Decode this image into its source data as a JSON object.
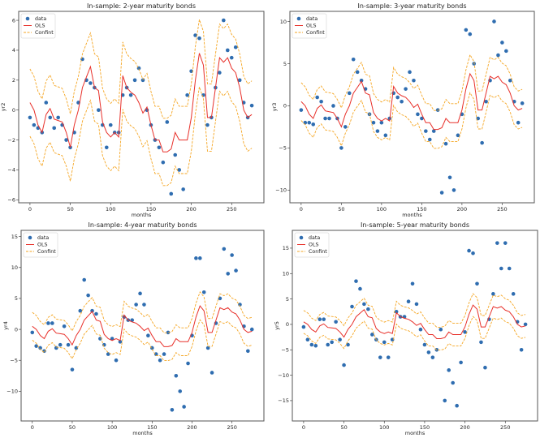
{
  "colors": {
    "data": "#2f6db0",
    "ols": "#e8302a",
    "confint": "#f5a623",
    "frame": "#555555"
  },
  "chart_data": [
    {
      "type": "scatter+line",
      "title": "In-sample: 2-year maturity bonds",
      "xlabel": "months",
      "ylabel": "yr2",
      "xlim": [
        -14,
        290
      ],
      "ylim": [
        -6.2,
        6.6
      ],
      "xticks": [
        0,
        50,
        100,
        150,
        200,
        250
      ],
      "yticks": [
        -6,
        -4,
        -2,
        0,
        2,
        4,
        6
      ],
      "legend": {
        "position": "top-left",
        "entries": [
          "data",
          "OLS",
          "Confint"
        ]
      },
      "data": [
        -0.5,
        -1.0,
        -1.2,
        -1.5,
        0.5,
        -0.5,
        -1.2,
        -0.5,
        -1.0,
        -2.0,
        -2.5,
        -1.5,
        0.5,
        3.4,
        2.0,
        1.8,
        1.5,
        0.0,
        -1.0,
        -2.5,
        -1.0,
        -1.5,
        -1.5,
        1.0,
        1.5,
        1.0,
        2.0,
        2.8,
        2.0,
        0.0,
        -1.0,
        -2.0,
        -2.5,
        -3.5,
        -0.8,
        -5.6,
        -3.0,
        -4.0,
        -5.3,
        1.0,
        2.6,
        5.0,
        4.8,
        1.0,
        -1.0,
        -0.5,
        1.5,
        2.5,
        6.0,
        4.0,
        3.5,
        4.2,
        2.0,
        0.5,
        -0.5,
        0.3
      ]
    },
    {
      "type": "scatter+line",
      "title": "In-sample: 3-year maturity bonds",
      "xlabel": "months",
      "ylabel": "yr3",
      "xlim": [
        -14,
        290
      ],
      "ylim": [
        -11.5,
        11.2
      ],
      "xticks": [
        0,
        50,
        100,
        150,
        200,
        250
      ],
      "yticks": [
        -10,
        -5,
        0,
        5,
        10
      ],
      "legend": {
        "position": "top-left",
        "entries": [
          "data",
          "OLS",
          "Confint"
        ]
      },
      "data": [
        -0.5,
        -2.0,
        -2.0,
        -2.2,
        1.0,
        0.5,
        -1.5,
        -1.5,
        0.0,
        -1.5,
        -5.0,
        -2.5,
        1.5,
        5.5,
        4.0,
        3.0,
        2.0,
        -1.0,
        -2.0,
        -3.0,
        -2.0,
        -3.5,
        -1.5,
        1.5,
        1.0,
        0.5,
        2.0,
        4.0,
        3.0,
        -1.0,
        -1.5,
        -3.0,
        -4.0,
        -3.0,
        -0.5,
        -10.3,
        -4.5,
        -8.5,
        -10.0,
        -3.5,
        -1.0,
        9.0,
        8.5,
        5.0,
        -1.5,
        -4.4,
        0.5,
        3.0,
        10.0,
        6.0,
        7.5,
        6.5,
        3.0,
        0.5,
        -2.0,
        0.3
      ]
    },
    {
      "type": "scatter+line",
      "title": "In-sample: 4-year maturity bonds",
      "xlabel": "months",
      "ylabel": "yr4",
      "xlim": [
        -14,
        290
      ],
      "ylim": [
        -14.8,
        16.0
      ],
      "xticks": [
        0,
        50,
        100,
        150,
        200,
        250
      ],
      "yticks": [
        -10,
        -5,
        0,
        5,
        10,
        15
      ],
      "legend": {
        "position": "top-left",
        "entries": [
          "data",
          "OLS",
          "Confint"
        ]
      },
      "data": [
        -0.5,
        -2.7,
        -3.0,
        -3.5,
        1.0,
        1.0,
        -3.0,
        -2.5,
        0.5,
        -2.5,
        -6.5,
        -3.0,
        3.0,
        8.0,
        5.5,
        3.0,
        2.5,
        -1.5,
        -2.5,
        -4.0,
        -1.5,
        -5.0,
        -2.0,
        2.0,
        1.5,
        1.5,
        4.0,
        5.8,
        4.0,
        -1.0,
        -3.0,
        -4.0,
        -5.0,
        -4.0,
        -0.5,
        -13.0,
        -7.5,
        -10.0,
        -12.5,
        -5.5,
        -1.0,
        11.5,
        11.5,
        6.0,
        -3.0,
        -7.0,
        1.0,
        5.0,
        13.0,
        9.0,
        12.0,
        9.5,
        4.0,
        0.5,
        -3.5,
        0.0
      ]
    },
    {
      "type": "scatter+line",
      "title": "In-sample: 5-year maturity bonds",
      "xlabel": "months",
      "ylabel": "yr5",
      "xlim": [
        -14,
        290
      ],
      "ylim": [
        -19.0,
        18.5
      ],
      "xticks": [
        0,
        50,
        100,
        150,
        200,
        250
      ],
      "yticks": [
        -15,
        -10,
        -5,
        0,
        5,
        10,
        15
      ],
      "legend": {
        "position": "top-left",
        "entries": [
          "data",
          "OLS",
          "Confint"
        ]
      },
      "data": [
        -0.5,
        -3.0,
        -4.0,
        -4.2,
        1.0,
        1.0,
        -4.0,
        -3.5,
        0.5,
        -3.0,
        -8.0,
        -4.0,
        3.5,
        8.5,
        7.0,
        4.0,
        3.0,
        -2.0,
        -3.0,
        -6.5,
        -3.5,
        -6.5,
        -3.0,
        2.5,
        1.5,
        1.5,
        4.5,
        8.0,
        4.0,
        -1.0,
        -4.0,
        -5.5,
        -6.5,
        -5.0,
        -1.0,
        -15.0,
        -9.0,
        -11.5,
        -16.0,
        -7.5,
        -1.5,
        14.5,
        14.0,
        8.0,
        -3.5,
        -8.5,
        1.0,
        6.0,
        16.0,
        11.0,
        16.0,
        11.0,
        6.0,
        0.5,
        -5.0,
        0.0
      ]
    }
  ],
  "shared": {
    "months": [
      0,
      5,
      10,
      15,
      20,
      25,
      30,
      35,
      40,
      45,
      50,
      55,
      60,
      65,
      70,
      75,
      80,
      85,
      90,
      95,
      100,
      105,
      110,
      115,
      120,
      125,
      130,
      135,
      140,
      145,
      150,
      155,
      160,
      165,
      170,
      175,
      180,
      185,
      190,
      195,
      200,
      205,
      210,
      215,
      220,
      225,
      230,
      235,
      240,
      245,
      250,
      255,
      260,
      265,
      270,
      275
    ],
    "ols": [
      0.5,
      0.0,
      -1.0,
      -1.5,
      -0.3,
      0.1,
      -0.6,
      -0.7,
      -0.8,
      -1.5,
      -2.5,
      -1.0,
      0.0,
      1.5,
      2.2,
      2.9,
      1.5,
      1.3,
      -0.8,
      -1.5,
      -1.8,
      -1.5,
      -1.8,
      2.3,
      1.5,
      1.2,
      1.0,
      0.5,
      -0.2,
      0.2,
      -1.0,
      -2.0,
      -2.0,
      -2.8,
      -2.8,
      -2.6,
      -1.5,
      -2.0,
      -2.0,
      -2.0,
      -0.5,
      2.0,
      3.8,
      3.0,
      -0.5,
      -0.5,
      1.5,
      3.5,
      3.2,
      3.5,
      2.8,
      2.5,
      1.5,
      0.0,
      -0.5,
      -0.3
    ],
    "confint_upper": [
      2.75,
      2.25,
      1.25,
      0.75,
      1.95,
      2.35,
      1.65,
      1.55,
      1.45,
      0.75,
      -0.25,
      1.25,
      2.25,
      3.75,
      4.45,
      5.15,
      3.75,
      3.55,
      1.45,
      0.75,
      0.45,
      0.75,
      0.45,
      4.55,
      3.75,
      3.45,
      3.25,
      2.75,
      2.05,
      2.45,
      1.25,
      0.25,
      0.25,
      -0.55,
      -0.55,
      -0.35,
      0.75,
      0.25,
      0.25,
      0.25,
      1.75,
      4.25,
      6.05,
      5.25,
      1.75,
      1.75,
      3.75,
      5.75,
      5.45,
      5.75,
      5.05,
      4.75,
      3.75,
      2.25,
      1.75,
      1.95
    ],
    "confint_lower": [
      -1.75,
      -2.25,
      -3.25,
      -3.75,
      -2.55,
      -2.15,
      -2.85,
      -2.95,
      -3.05,
      -3.75,
      -4.75,
      -3.25,
      -2.25,
      -0.75,
      -0.05,
      0.65,
      -0.75,
      -0.95,
      -3.05,
      -3.75,
      -4.05,
      -3.75,
      -4.05,
      0.05,
      -0.75,
      -1.05,
      -1.25,
      -1.75,
      -2.45,
      -2.05,
      -3.25,
      -4.25,
      -4.25,
      -5.05,
      -5.05,
      -4.85,
      -3.75,
      -4.25,
      -4.25,
      -4.25,
      -2.75,
      -0.25,
      1.55,
      0.75,
      -2.75,
      -2.75,
      -0.75,
      1.25,
      0.95,
      1.25,
      0.55,
      0.25,
      -0.75,
      -2.25,
      -2.75,
      -2.55
    ]
  }
}
